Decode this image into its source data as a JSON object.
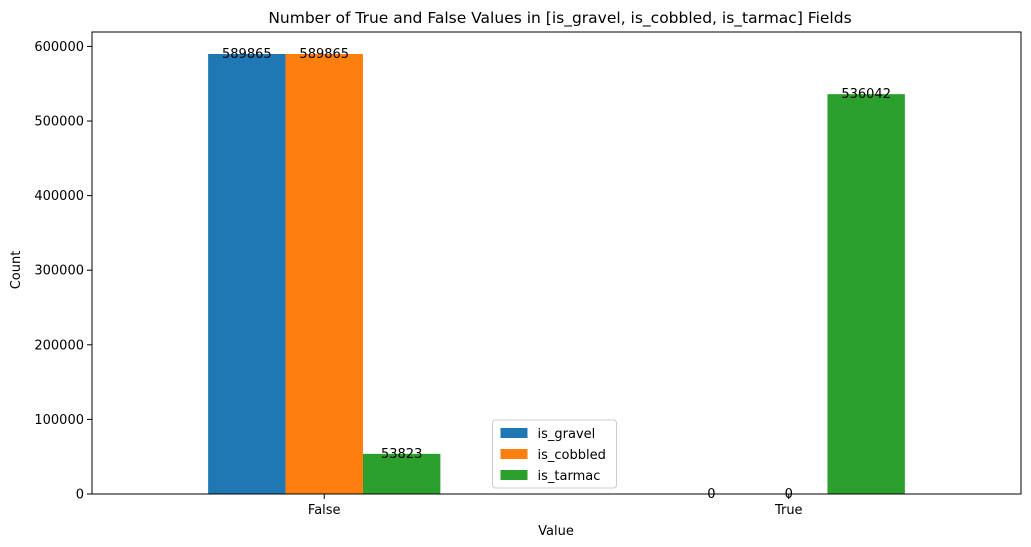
{
  "chart_data": {
    "type": "bar",
    "title": "Number of True and False Values in [is_gravel, is_cobbled, is_tarmac] Fields",
    "xlabel": "Value",
    "ylabel": "Count",
    "categories": [
      "False",
      "True"
    ],
    "series": [
      {
        "name": "is_gravel",
        "values": [
          589865,
          0
        ],
        "color": "#1f77b4"
      },
      {
        "name": "is_cobbled",
        "values": [
          589865,
          0
        ],
        "color": "#ff7f0e"
      },
      {
        "name": "is_tarmac",
        "values": [
          53823,
          536042
        ],
        "color": "#2ca02c"
      }
    ],
    "data_labels": [
      [
        "589865",
        "0"
      ],
      [
        "589865",
        "0"
      ],
      [
        "53823",
        "536042"
      ]
    ],
    "ylim": [
      0,
      619358
    ],
    "yticks": [
      0,
      100000,
      200000,
      300000,
      400000,
      500000,
      600000
    ],
    "ytick_labels": [
      "0",
      "100000",
      "200000",
      "300000",
      "400000",
      "500000",
      "600000"
    ],
    "grid": false,
    "legend_position": "bottom-center"
  }
}
